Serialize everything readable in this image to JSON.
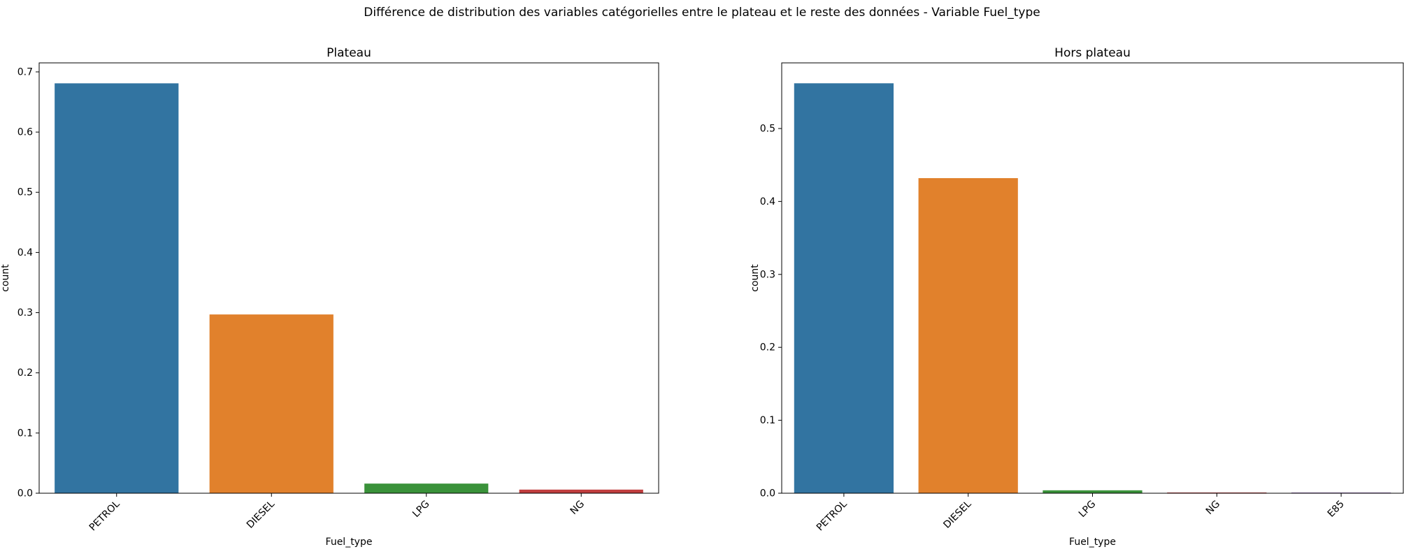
{
  "suptitle": "Différence de distribution des variables catégorielles entre le plateau et le reste des données - Variable Fuel_type",
  "chart_data": [
    {
      "type": "bar",
      "title": "Plateau",
      "xlabel": "Fuel_type",
      "ylabel": "count",
      "categories": [
        "PETROL",
        "DIESEL",
        "LPG",
        "NG"
      ],
      "values": [
        0.681,
        0.297,
        0.016,
        0.006
      ],
      "colors": [
        "#3274a1",
        "#e1812c",
        "#3a923a",
        "#c03d3e"
      ],
      "ylim": [
        0,
        0.715
      ],
      "yticks": [
        0.0,
        0.1,
        0.2,
        0.3,
        0.4,
        0.5,
        0.6,
        0.7
      ],
      "yticklabels": [
        "0.0",
        "0.1",
        "0.2",
        "0.3",
        "0.4",
        "0.5",
        "0.6",
        "0.7"
      ],
      "grid": false,
      "legend": "none"
    },
    {
      "type": "bar",
      "title": "Hors plateau",
      "xlabel": "Fuel_type",
      "ylabel": "count",
      "categories": [
        "PETROL",
        "DIESEL",
        "LPG",
        "NG",
        "E85"
      ],
      "values": [
        0.562,
        0.432,
        0.004,
        0.001,
        0.001
      ],
      "colors": [
        "#3274a1",
        "#e1812c",
        "#3a923a",
        "#c03d3e",
        "#9372b2"
      ],
      "ylim": [
        0,
        0.59
      ],
      "yticks": [
        0.0,
        0.1,
        0.2,
        0.3,
        0.4,
        0.5
      ],
      "yticklabels": [
        "0.0",
        "0.1",
        "0.2",
        "0.3",
        "0.4",
        "0.5"
      ],
      "grid": false,
      "legend": "none"
    }
  ]
}
